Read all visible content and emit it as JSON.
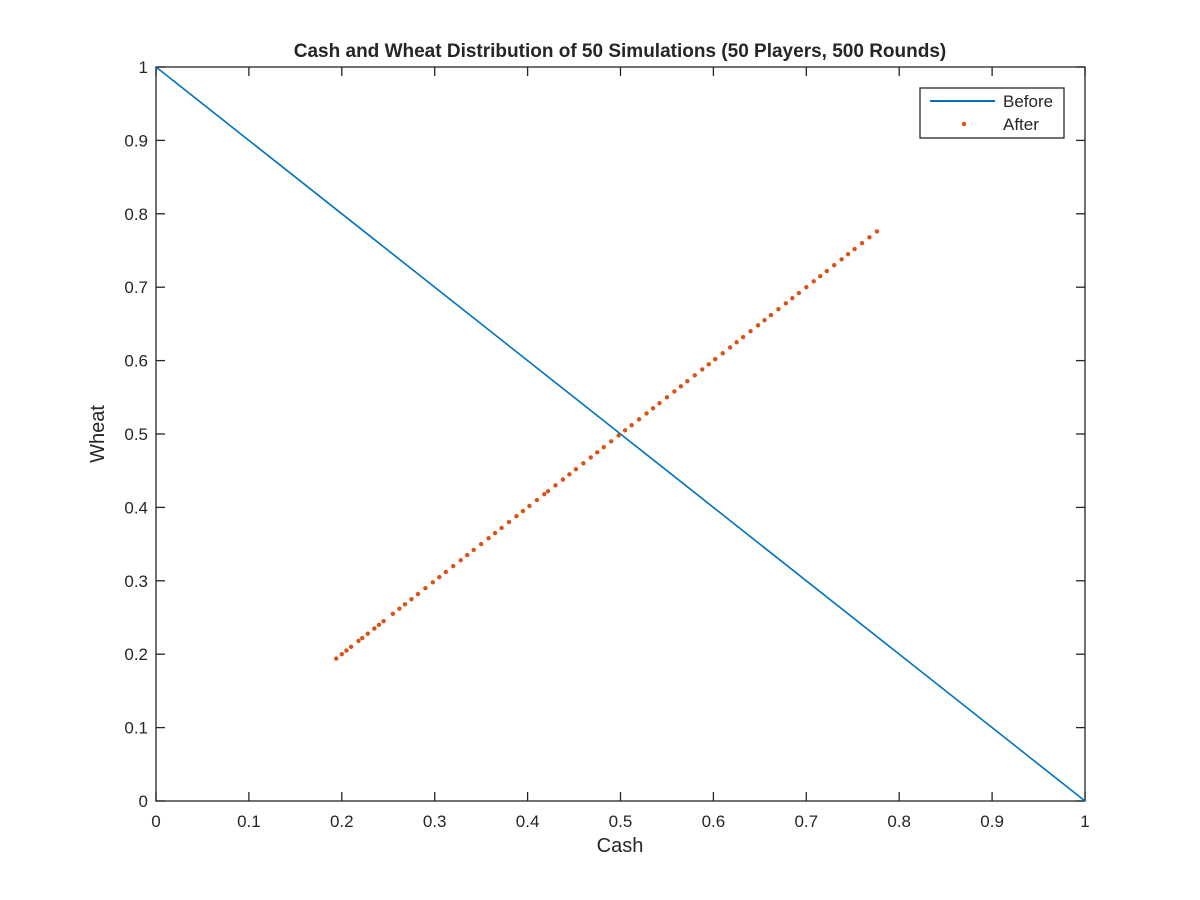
{
  "chart_data": {
    "type": "scatter",
    "title": "Cash and Wheat Distribution of 50 Simulations (50 Players, 500 Rounds)",
    "xlabel": "Cash",
    "ylabel": "Wheat",
    "xlim": [
      0,
      1
    ],
    "ylim": [
      0,
      1
    ],
    "xticks": [
      "0",
      "0.1",
      "0.2",
      "0.3",
      "0.4",
      "0.5",
      "0.6",
      "0.7",
      "0.8",
      "0.9",
      "1"
    ],
    "yticks": [
      "0",
      "0.1",
      "0.2",
      "0.3",
      "0.4",
      "0.5",
      "0.6",
      "0.7",
      "0.8",
      "0.9",
      "1"
    ],
    "grid": false,
    "legend_position": "top-right",
    "series": [
      {
        "name": "Before",
        "kind": "line",
        "color": "#0072BD",
        "x": [
          0,
          1
        ],
        "y": [
          1,
          0
        ]
      },
      {
        "name": "After",
        "kind": "scatter",
        "color": "#D95319",
        "x": [
          0.194,
          0.2,
          0.205,
          0.21,
          0.218,
          0.222,
          0.228,
          0.235,
          0.24,
          0.245,
          0.255,
          0.262,
          0.268,
          0.275,
          0.282,
          0.29,
          0.298,
          0.305,
          0.312,
          0.32,
          0.328,
          0.335,
          0.342,
          0.35,
          0.358,
          0.365,
          0.372,
          0.38,
          0.388,
          0.395,
          0.402,
          0.41,
          0.418,
          0.422,
          0.43,
          0.438,
          0.445,
          0.452,
          0.46,
          0.468,
          0.475,
          0.482,
          0.49,
          0.498,
          0.505,
          0.512,
          0.52,
          0.528,
          0.535,
          0.542,
          0.55,
          0.558,
          0.565,
          0.572,
          0.58,
          0.588,
          0.595,
          0.602,
          0.61,
          0.618,
          0.625,
          0.632,
          0.64,
          0.648,
          0.655,
          0.662,
          0.67,
          0.678,
          0.685,
          0.692,
          0.7,
          0.708,
          0.715,
          0.722,
          0.73,
          0.738,
          0.745,
          0.752,
          0.76,
          0.768,
          0.776
        ],
        "y": [
          0.194,
          0.2,
          0.205,
          0.21,
          0.218,
          0.222,
          0.228,
          0.235,
          0.24,
          0.245,
          0.255,
          0.262,
          0.268,
          0.275,
          0.282,
          0.29,
          0.298,
          0.305,
          0.312,
          0.32,
          0.328,
          0.335,
          0.342,
          0.35,
          0.358,
          0.365,
          0.372,
          0.38,
          0.388,
          0.395,
          0.402,
          0.41,
          0.418,
          0.422,
          0.43,
          0.438,
          0.445,
          0.452,
          0.46,
          0.468,
          0.475,
          0.482,
          0.49,
          0.498,
          0.505,
          0.512,
          0.52,
          0.528,
          0.535,
          0.542,
          0.55,
          0.558,
          0.565,
          0.572,
          0.58,
          0.588,
          0.595,
          0.602,
          0.61,
          0.618,
          0.625,
          0.632,
          0.64,
          0.648,
          0.655,
          0.662,
          0.67,
          0.678,
          0.685,
          0.692,
          0.7,
          0.708,
          0.715,
          0.722,
          0.73,
          0.738,
          0.745,
          0.752,
          0.76,
          0.768,
          0.776
        ]
      }
    ]
  }
}
